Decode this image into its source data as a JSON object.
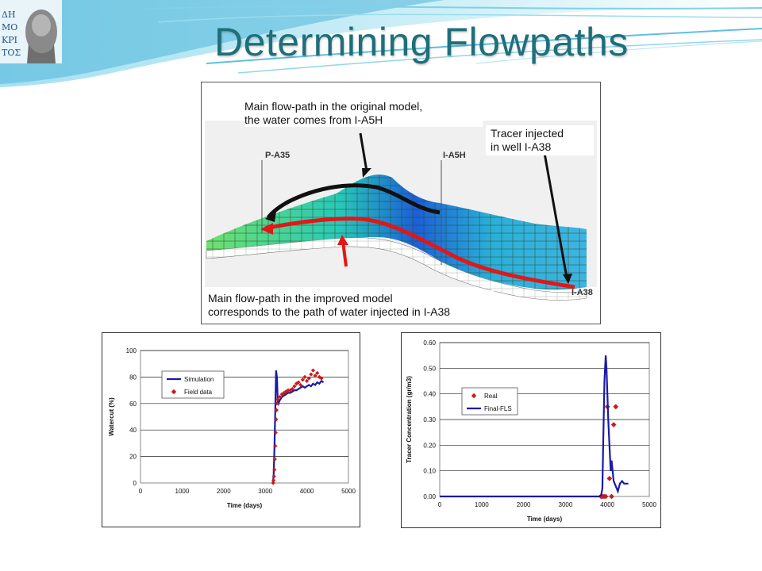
{
  "slide": {
    "title": "Determining Flowpaths"
  },
  "logo": {
    "glyphs": "ΔΗΜΟΚΡΙΤΟΣ"
  },
  "figure": {
    "callout_top_line1": "Main flow-path in the original model,",
    "callout_top_line2": "the water comes from I-A5H",
    "callout_right_line1": "Tracer injected",
    "callout_right_line2": "in well I-A38",
    "callout_bottom_line1": "Main flow-path in the improved model",
    "callout_bottom_line2": "corresponds to the path of water injected in I-A38",
    "well_labels": [
      "P-A35",
      "I-A5H",
      "I-A38"
    ]
  },
  "chart_data": [
    {
      "type": "line",
      "xlabel": "Time (days)",
      "ylabel": "Watercut (%)",
      "xlim": [
        0,
        5000
      ],
      "ylim": [
        0,
        100
      ],
      "xticks": [
        "0",
        "1000",
        "2000",
        "3000",
        "4000",
        "5000"
      ],
      "yticks": [
        "0",
        "20",
        "40",
        "60",
        "80",
        "100"
      ],
      "grid": true,
      "legend_position": "top-left",
      "series": [
        {
          "name": "Simulation",
          "kind": "line",
          "color": "#1a1aa8",
          "x": [
            3180,
            3200,
            3220,
            3240,
            3260,
            3280,
            3300,
            3320,
            3340,
            3360,
            3400,
            3450,
            3500,
            3550,
            3600,
            3650,
            3700,
            3750,
            3800,
            3850,
            3900,
            3950,
            4000,
            4050,
            4100,
            4150,
            4200,
            4250,
            4300,
            4350,
            4400
          ],
          "y": [
            0,
            5,
            25,
            55,
            85,
            80,
            62,
            60,
            62,
            63,
            65,
            66,
            67,
            68,
            68,
            69,
            70,
            70,
            71,
            72,
            73,
            72,
            73,
            74,
            73,
            75,
            74,
            76,
            75,
            77,
            76
          ]
        },
        {
          "name": "Field data",
          "kind": "scatter",
          "color": "#cc1b1b",
          "x": [
            3190,
            3200,
            3210,
            3220,
            3230,
            3240,
            3250,
            3260,
            3270,
            3280,
            3300,
            3350,
            3400,
            3450,
            3500,
            3550,
            3600,
            3650,
            3700,
            3750,
            3800,
            3850,
            3900,
            3950,
            4000,
            4050,
            4100,
            4150,
            4200,
            4250,
            4300,
            4350
          ],
          "y": [
            0,
            2,
            5,
            10,
            18,
            28,
            38,
            48,
            55,
            60,
            63,
            65,
            67,
            68,
            69,
            70,
            70,
            71,
            73,
            75,
            76,
            74,
            78,
            80,
            77,
            79,
            82,
            85,
            81,
            83,
            80,
            79
          ]
        }
      ]
    },
    {
      "type": "line",
      "xlabel": "Time (days)",
      "ylabel": "Tracer Concentration (gr/m3)",
      "xlim": [
        0,
        5000
      ],
      "ylim": [
        0,
        0.6
      ],
      "xticks": [
        "0",
        "1000",
        "2000",
        "3000",
        "4000",
        "5000"
      ],
      "yticks": [
        "0.00",
        "0.10",
        "0.20",
        "0.30",
        "0.40",
        "0.50",
        "0.60"
      ],
      "grid": true,
      "legend_position": "left",
      "series": [
        {
          "name": "Real",
          "kind": "scatter",
          "color": "#cc1b1b",
          "x": [
            3850,
            3880,
            3920,
            3960,
            4000,
            4050,
            4100,
            4150,
            4200
          ],
          "y": [
            0.0,
            0.0,
            0.0,
            0.0,
            0.35,
            0.07,
            0.0,
            0.28,
            0.35
          ]
        },
        {
          "name": "Final-FLS",
          "kind": "line",
          "color": "#1a1aa8",
          "x": [
            0,
            3800,
            3850,
            3880,
            3900,
            3930,
            3960,
            3980,
            4000,
            4020,
            4050,
            4080,
            4100,
            4150,
            4200,
            4250,
            4300,
            4350,
            4400,
            4500
          ],
          "y": [
            0,
            0,
            0.005,
            0.03,
            0.2,
            0.45,
            0.55,
            0.5,
            0.4,
            0.3,
            0.2,
            0.1,
            0.14,
            0.06,
            0.04,
            0.02,
            0.05,
            0.06,
            0.05,
            0.05
          ]
        }
      ]
    }
  ]
}
